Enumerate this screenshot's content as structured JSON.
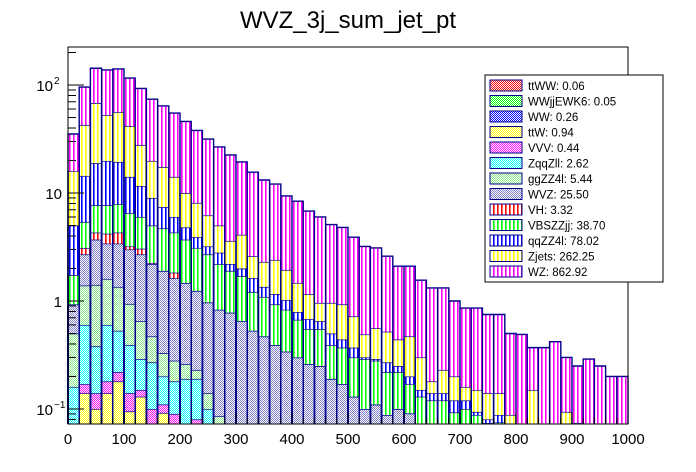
{
  "chart_data": {
    "type": "bar",
    "subtype": "stacked-histogram",
    "title": "WVZ_3j_sum_jet_pt",
    "xlabel": "",
    "ylabel": "",
    "xlim": [
      0,
      1000
    ],
    "ylim": [
      0.0726,
      225
    ],
    "yscale": "log",
    "bins": 50,
    "bin_width": 20,
    "grid": false,
    "legend_position": "top-right",
    "x_tick_labels": [
      "0",
      "100",
      "200",
      "300",
      "400",
      "500",
      "600",
      "700",
      "800",
      "900",
      "1000"
    ],
    "x_tick_values": [
      0,
      100,
      200,
      300,
      400,
      500,
      600,
      700,
      800,
      900,
      1000
    ],
    "y_tick_labels": [
      {
        "value": 0.1,
        "base": "10",
        "exp": "−1"
      },
      {
        "value": 1,
        "base": "1",
        "exp": ""
      },
      {
        "value": 10,
        "base": "10",
        "exp": ""
      },
      {
        "value": 100,
        "base": "10",
        "exp": "2"
      }
    ],
    "value_semantics": "cumulative stack top per bin (data units); null = layer empty in that bin",
    "series": [
      {
        "name": "ttW",
        "legend": "ttW: 0.94",
        "color": "#ffff00",
        "fill": "crosshatch",
        "cumulative": [
          null,
          0.14,
          0.1,
          0.14,
          0.18,
          0.095,
          0.13,
          null,
          0.092,
          null,
          null,
          null,
          null,
          null,
          null,
          null,
          null,
          null,
          null,
          null,
          null,
          null,
          null,
          null,
          null,
          null,
          null,
          null,
          null,
          null,
          null,
          null,
          null,
          null,
          null,
          null,
          null,
          null,
          null,
          null,
          null,
          null,
          null,
          null,
          null,
          null,
          null,
          null,
          null,
          null
        ]
      },
      {
        "name": "VVV",
        "legend": "VVV: 0.44",
        "color": "#ff00ff",
        "fill": "crosshatch",
        "cumulative": [
          null,
          0.17,
          0.14,
          0.18,
          0.22,
          0.14,
          0.15,
          0.1,
          0.11,
          0.09,
          null,
          0.08,
          null,
          null,
          null,
          null,
          null,
          null,
          null,
          null,
          null,
          null,
          null,
          null,
          null,
          null,
          null,
          null,
          null,
          null,
          null,
          null,
          null,
          null,
          null,
          null,
          null,
          null,
          null,
          null,
          null,
          null,
          null,
          null,
          null,
          null,
          null,
          null,
          null,
          null
        ]
      },
      {
        "name": "ZqqZll",
        "legend": "ZqqZll: 2.62",
        "color": "#00ffff",
        "fill": "crosshatch",
        "cumulative": [
          0.16,
          0.6,
          0.38,
          0.6,
          0.53,
          0.39,
          0.29,
          0.27,
          0.2,
          0.18,
          0.19,
          0.19,
          0.1,
          null,
          null,
          null,
          null,
          null,
          null,
          null,
          null,
          null,
          null,
          null,
          null,
          null,
          null,
          null,
          null,
          null,
          null,
          null,
          null,
          null,
          null,
          null,
          null,
          null,
          null,
          null,
          null,
          null,
          null,
          null,
          null,
          null,
          null,
          null,
          null,
          null
        ]
      },
      {
        "name": "ggZZ4l",
        "legend": "ggZZ4l: 5.44",
        "color": "#88e788",
        "fill": "crosshatch",
        "cumulative": [
          0.5,
          1.39,
          1.41,
          1.6,
          1.35,
          0.94,
          0.65,
          0.47,
          0.33,
          0.28,
          0.26,
          0.23,
          0.14,
          0.086,
          null,
          null,
          null,
          null,
          null,
          null,
          null,
          null,
          null,
          null,
          null,
          null,
          null,
          null,
          null,
          null,
          null,
          null,
          null,
          null,
          null,
          null,
          null,
          null,
          null,
          null,
          null,
          null,
          null,
          null,
          null,
          null,
          null,
          null,
          null,
          null
        ]
      },
      {
        "name": "WVZ",
        "legend": "WVZ: 25.50",
        "color": "#8080c8",
        "fill": "crosshatch",
        "cumulative": [
          0.93,
          2.7,
          3.7,
          3.4,
          3.4,
          3.0,
          2.7,
          2.2,
          1.9,
          1.63,
          1.47,
          1.24,
          0.97,
          0.83,
          0.78,
          0.65,
          0.53,
          0.47,
          0.39,
          0.34,
          0.3,
          0.26,
          0.25,
          0.19,
          0.17,
          0.13,
          0.1,
          0.11,
          0.088,
          0.1,
          0.091,
          null,
          null,
          null,
          null,
          null,
          null,
          null,
          null,
          null,
          null,
          null,
          null,
          null,
          null,
          null,
          null,
          null,
          null,
          null
        ]
      },
      {
        "name": "VH",
        "legend": "VH: 3.32",
        "color": "#ff0000",
        "fill": "vertical",
        "cumulative": [
          0.93,
          3.1,
          4.3,
          4.2,
          4.3,
          3.2,
          3.05,
          2.25,
          1.9,
          1.83,
          1.47,
          1.24,
          0.97,
          0.83,
          0.78,
          0.65,
          0.53,
          0.47,
          0.39,
          0.34,
          0.3,
          0.26,
          0.25,
          0.19,
          0.17,
          0.13,
          0.1,
          0.11,
          0.088,
          0.1,
          0.091,
          null,
          null,
          null,
          null,
          null,
          null,
          null,
          null,
          null,
          null,
          null,
          null,
          null,
          null,
          null,
          null,
          null,
          null,
          null
        ]
      },
      {
        "name": "VBSZZjj",
        "legend": "VBSZZjj: 38.70",
        "color": "#00ff00",
        "fill": "vertical",
        "cumulative": [
          1.74,
          5.4,
          7.7,
          7.7,
          7.9,
          6.5,
          6.0,
          5.0,
          4.7,
          4.3,
          3.7,
          3.1,
          2.7,
          2.2,
          1.9,
          1.7,
          1.21,
          1.09,
          0.93,
          0.83,
          0.67,
          0.55,
          0.55,
          0.39,
          0.37,
          0.3,
          0.29,
          0.28,
          0.22,
          0.22,
          0.17,
          0.13,
          0.12,
          0.12,
          0.093,
          0.1,
          0.088,
          0.074,
          0.075,
          null,
          null,
          null,
          null,
          null,
          null,
          null,
          null,
          null,
          null,
          null
        ]
      },
      {
        "name": "qqZZ4l",
        "legend": "qqZZ4l: 78.02",
        "color": "#0000ff",
        "fill": "vertical",
        "cumulative": [
          5.0,
          14.4,
          18.9,
          19.8,
          19.4,
          14.1,
          11.6,
          9.0,
          7.4,
          6.0,
          4.8,
          3.9,
          3.2,
          2.8,
          2.2,
          2.0,
          1.63,
          1.35,
          1.16,
          1.02,
          0.79,
          0.68,
          0.65,
          0.5,
          0.44,
          0.37,
          0.3,
          0.29,
          0.27,
          0.25,
          0.2,
          0.15,
          0.14,
          0.14,
          0.12,
          0.12,
          0.094,
          0.08,
          0.088,
          null,
          null,
          null,
          null,
          null,
          null,
          0.074,
          null,
          null,
          null,
          null
        ]
      },
      {
        "name": "Zjets",
        "legend": "Zjets: 262.25",
        "color": "#ffff00",
        "fill": "vertical",
        "cumulative": [
          16,
          42.6,
          68,
          52.7,
          56.2,
          41.7,
          27.8,
          19.8,
          17.4,
          14.1,
          10,
          8.1,
          6.2,
          5.0,
          3.6,
          4.1,
          2.6,
          2.3,
          2.4,
          1.94,
          1.47,
          1.16,
          0.96,
          0.96,
          0.93,
          0.72,
          0.49,
          0.56,
          0.52,
          0.44,
          0.47,
          0.3,
          0.18,
          0.23,
          0.2,
          0.16,
          0.15,
          0.14,
          0.14,
          0.088,
          null,
          0.15,
          null,
          null,
          0.094,
          null,
          null,
          null,
          null,
          null
        ]
      },
      {
        "name": "WZ",
        "legend": "WZ: 862.92",
        "color": "#ff00ff",
        "fill": "vertical",
        "cumulative": [
          35.2,
          95.8,
          143,
          138,
          141,
          116,
          93,
          74,
          64,
          55,
          46,
          38,
          31.6,
          26.7,
          22.5,
          19.4,
          15.6,
          13.2,
          12.1,
          9.4,
          8.4,
          6.8,
          6.0,
          5.1,
          4.8,
          3.9,
          3.2,
          3.1,
          2.6,
          2.1,
          2.1,
          1.56,
          1.32,
          1.32,
          1.0,
          0.86,
          0.86,
          0.75,
          0.75,
          0.5,
          0.49,
          0.37,
          0.37,
          0.42,
          0.3,
          0.25,
          0.29,
          0.25,
          0.2,
          0.2
        ]
      }
    ],
    "legend_entries": [
      {
        "label": "ttWW: 0.06",
        "color": "#ff0000",
        "fill": "crosshatch"
      },
      {
        "label": "WWjjEWK6: 0.05",
        "color": "#00ff00",
        "fill": "crosshatch"
      },
      {
        "label": "WW: 0.26",
        "color": "#0000ff",
        "fill": "crosshatch"
      },
      {
        "label": "ttW: 0.94",
        "color": "#ffff00",
        "fill": "crosshatch"
      },
      {
        "label": "VVV: 0.44",
        "color": "#ff00ff",
        "fill": "crosshatch"
      },
      {
        "label": "ZqqZll: 2.62",
        "color": "#00ffff",
        "fill": "crosshatch"
      },
      {
        "label": "ggZZ4l: 5.44",
        "color": "#88e788",
        "fill": "crosshatch"
      },
      {
        "label": "WVZ: 25.50",
        "color": "#8080c8",
        "fill": "crosshatch"
      },
      {
        "label": "VH: 3.32",
        "color": "#ff0000",
        "fill": "vertical"
      },
      {
        "label": "VBSZZjj: 38.70",
        "color": "#00ff00",
        "fill": "vertical"
      },
      {
        "label": "qqZZ4l: 78.02",
        "color": "#0000ff",
        "fill": "vertical"
      },
      {
        "label": "Zjets: 262.25",
        "color": "#ffff00",
        "fill": "vertical"
      },
      {
        "label": "WZ: 862.92",
        "color": "#ff00ff",
        "fill": "vertical"
      }
    ]
  }
}
